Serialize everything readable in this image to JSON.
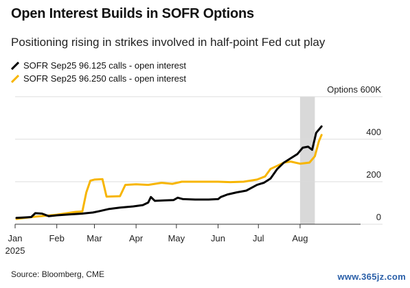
{
  "header": {
    "title": "Open Interest Builds in SOFR Options",
    "subtitle": "Positioning rising in strikes involved in half-point Fed cut play"
  },
  "footer": {
    "source": "Source: Bloomberg, CME",
    "watermark": "www.365jz.com"
  },
  "chart_data": {
    "type": "line",
    "title": "Open Interest Builds in SOFR Options",
    "subtitle": "Positioning rising in strikes involved in half-point Fed cut play",
    "unit_label": "Options 600K",
    "ylim": [
      0,
      600
    ],
    "y_ticks": [
      0,
      200,
      400
    ],
    "y_tick_labels": [
      "0",
      "200",
      "400"
    ],
    "x_range": [
      "2025-01-01",
      "2025-09-15"
    ],
    "x_ticks": [
      {
        "date": "2025-01-01",
        "label": "Jan"
      },
      {
        "date": "2025-02-01",
        "label": "Feb"
      },
      {
        "date": "2025-03-01",
        "label": "Mar"
      },
      {
        "date": "2025-04-01",
        "label": "Apr"
      },
      {
        "date": "2025-05-01",
        "label": "May"
      },
      {
        "date": "2025-06-01",
        "label": "Jun"
      },
      {
        "date": "2025-07-01",
        "label": "Jul"
      },
      {
        "date": "2025-08-01",
        "label": "Aug"
      }
    ],
    "year_label": "2025",
    "grid": true,
    "legend_position": "top-left",
    "shaded_range": [
      "2025-08-01",
      "2025-08-12"
    ],
    "series": [
      {
        "name": "SOFR Sep25 96.125 calls - open interest",
        "color": "#000000",
        "points": [
          [
            "2025-01-02",
            30
          ],
          [
            "2025-01-08",
            32
          ],
          [
            "2025-01-13",
            34
          ],
          [
            "2025-01-16",
            52
          ],
          [
            "2025-01-21",
            50
          ],
          [
            "2025-01-26",
            38
          ],
          [
            "2025-02-01",
            42
          ],
          [
            "2025-02-10",
            46
          ],
          [
            "2025-02-20",
            50
          ],
          [
            "2025-02-28",
            55
          ],
          [
            "2025-03-05",
            62
          ],
          [
            "2025-03-12",
            72
          ],
          [
            "2025-03-20",
            78
          ],
          [
            "2025-03-30",
            84
          ],
          [
            "2025-04-06",
            90
          ],
          [
            "2025-04-10",
            102
          ],
          [
            "2025-04-12",
            128
          ],
          [
            "2025-04-15",
            110
          ],
          [
            "2025-04-22",
            112
          ],
          [
            "2025-04-29",
            114
          ],
          [
            "2025-05-02",
            125
          ],
          [
            "2025-05-06",
            118
          ],
          [
            "2025-05-15",
            116
          ],
          [
            "2025-05-25",
            116
          ],
          [
            "2025-06-01",
            118
          ],
          [
            "2025-06-03",
            128
          ],
          [
            "2025-06-08",
            140
          ],
          [
            "2025-06-15",
            150
          ],
          [
            "2025-06-22",
            158
          ],
          [
            "2025-06-30",
            185
          ],
          [
            "2025-07-05",
            195
          ],
          [
            "2025-07-10",
            215
          ],
          [
            "2025-07-15",
            260
          ],
          [
            "2025-07-20",
            290
          ],
          [
            "2025-07-25",
            310
          ],
          [
            "2025-07-30",
            330
          ],
          [
            "2025-08-03",
            360
          ],
          [
            "2025-08-07",
            365
          ],
          [
            "2025-08-10",
            350
          ],
          [
            "2025-08-13",
            430
          ],
          [
            "2025-08-17",
            460
          ]
        ]
      },
      {
        "name": "SOFR Sep25 96.250 calls - open interest",
        "color": "#f7b500",
        "points": [
          [
            "2025-01-02",
            25
          ],
          [
            "2025-01-15",
            35
          ],
          [
            "2025-02-01",
            45
          ],
          [
            "2025-02-15",
            58
          ],
          [
            "2025-02-20",
            60
          ],
          [
            "2025-02-23",
            150
          ],
          [
            "2025-02-26",
            205
          ],
          [
            "2025-03-01",
            210
          ],
          [
            "2025-03-07",
            212
          ],
          [
            "2025-03-10",
            130
          ],
          [
            "2025-03-20",
            132
          ],
          [
            "2025-03-24",
            185
          ],
          [
            "2025-04-01",
            188
          ],
          [
            "2025-04-10",
            185
          ],
          [
            "2025-04-15",
            190
          ],
          [
            "2025-04-20",
            195
          ],
          [
            "2025-04-28",
            190
          ],
          [
            "2025-05-05",
            200
          ],
          [
            "2025-05-20",
            200
          ],
          [
            "2025-06-01",
            200
          ],
          [
            "2025-06-10",
            198
          ],
          [
            "2025-06-20",
            200
          ],
          [
            "2025-06-30",
            210
          ],
          [
            "2025-07-06",
            225
          ],
          [
            "2025-07-10",
            260
          ],
          [
            "2025-07-15",
            275
          ],
          [
            "2025-07-20",
            290
          ],
          [
            "2025-07-25",
            295
          ],
          [
            "2025-08-01",
            285
          ],
          [
            "2025-08-08",
            290
          ],
          [
            "2025-08-12",
            320
          ],
          [
            "2025-08-15",
            390
          ],
          [
            "2025-08-17",
            420
          ]
        ]
      }
    ]
  }
}
